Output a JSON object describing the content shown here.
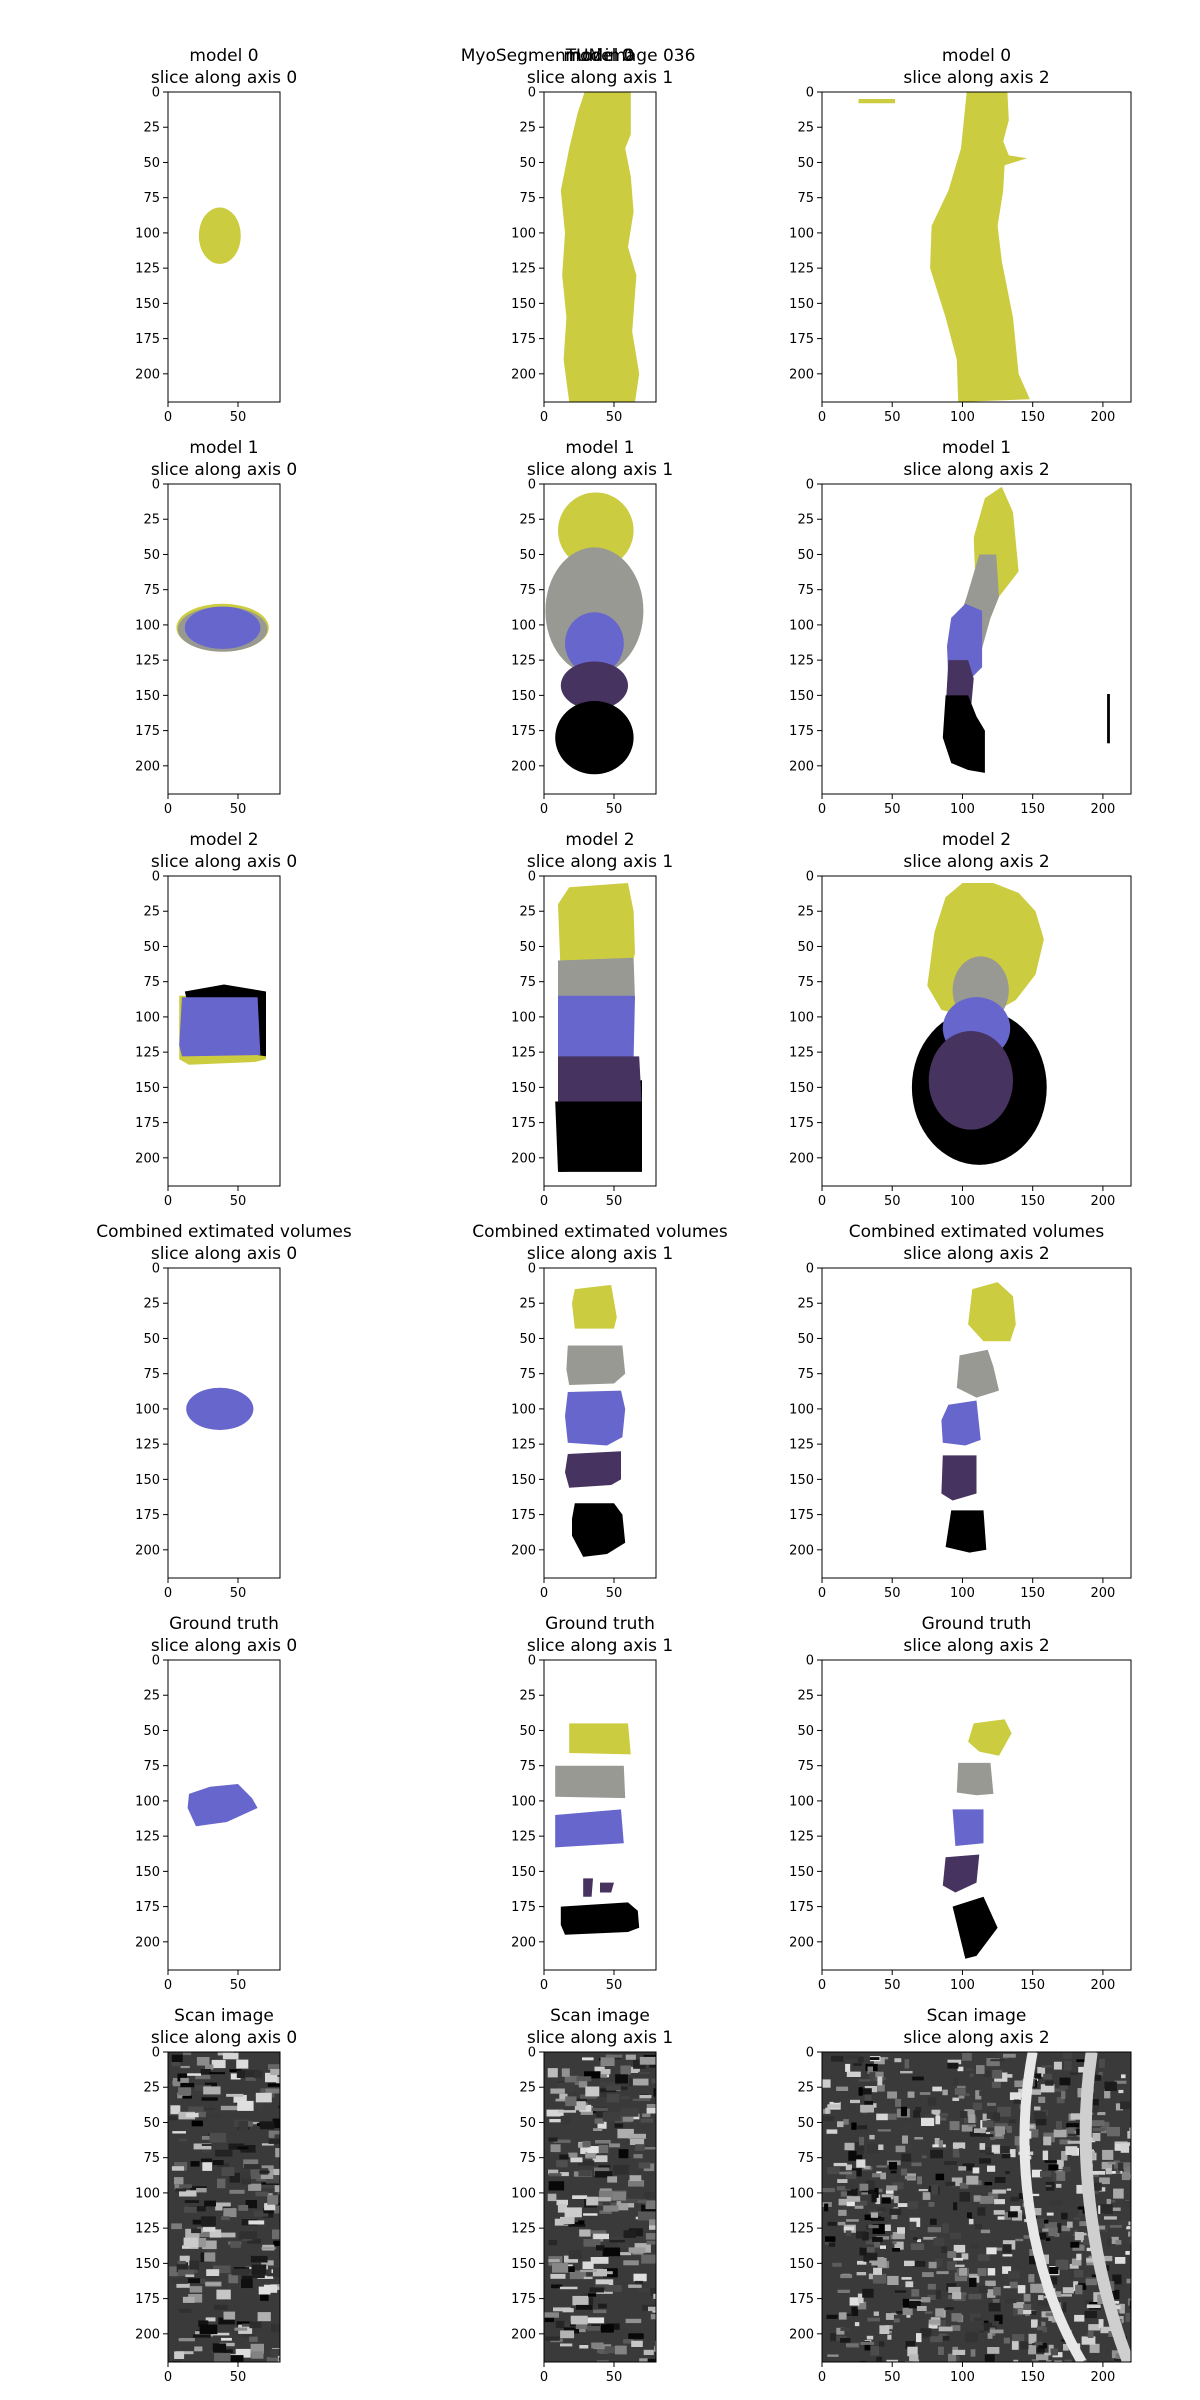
{
  "figure": {
    "suptitle_a": "MyoSegmenTUM",
    "suptitle_b": "image 036",
    "suptitle_c": "model 0"
  },
  "chart_data": {
    "type": "image-grid",
    "rows": [
      "model 0",
      "model 1",
      "model 2",
      "Combined extimated volumes",
      "Ground truth",
      "Scan image"
    ],
    "columns": [
      "slice along axis 0",
      "slice along axis 1",
      "slice along axis 2"
    ],
    "axis_ranges": {
      "axis0": {
        "x": [
          0,
          80
        ],
        "y": [
          0,
          220
        ],
        "xticks": [
          0,
          50
        ],
        "yticks": [
          0,
          25,
          50,
          75,
          100,
          125,
          150,
          175,
          200
        ]
      },
      "axis1": {
        "x": [
          0,
          80
        ],
        "y": [
          0,
          220
        ],
        "xticks": [
          0,
          50
        ],
        "yticks": [
          0,
          25,
          50,
          75,
          100,
          125,
          150,
          175,
          200
        ]
      },
      "axis2": {
        "x": [
          0,
          220
        ],
        "y": [
          0,
          220
        ],
        "xticks": [
          0,
          50,
          100,
          150,
          200
        ],
        "yticks": [
          0,
          25,
          50,
          75,
          100,
          125,
          150,
          175,
          200
        ]
      }
    },
    "class_colors": [
      "#cccc40",
      "#999994",
      "#6666cc",
      "#46335f",
      "#000000"
    ],
    "grid": false,
    "legend": "none"
  },
  "panels": [
    {
      "title": "model 0",
      "subtitle": "slice along axis 0"
    },
    {
      "title": "model 0",
      "subtitle": "slice along axis 1"
    },
    {
      "title": "model 0",
      "subtitle": "slice along axis 2"
    },
    {
      "title": "model 1",
      "subtitle": "slice along axis 0"
    },
    {
      "title": "model 1",
      "subtitle": "slice along axis 1"
    },
    {
      "title": "model 1",
      "subtitle": "slice along axis 2"
    },
    {
      "title": "model 2",
      "subtitle": "slice along axis 0"
    },
    {
      "title": "model 2",
      "subtitle": "slice along axis 1"
    },
    {
      "title": "model 2",
      "subtitle": "slice along axis 2"
    },
    {
      "title": "Combined extimated volumes",
      "subtitle": "slice along axis 0"
    },
    {
      "title": "Combined extimated volumes",
      "subtitle": "slice along axis 1"
    },
    {
      "title": "Combined extimated volumes",
      "subtitle": "slice along axis 2"
    },
    {
      "title": "Ground truth",
      "subtitle": "slice along axis 0"
    },
    {
      "title": "Ground truth",
      "subtitle": "slice along axis 1"
    },
    {
      "title": "Ground truth",
      "subtitle": "slice along axis 2"
    },
    {
      "title": "Scan image",
      "subtitle": "slice along axis 0"
    },
    {
      "title": "Scan image",
      "subtitle": "slice along axis 1"
    },
    {
      "title": "Scan image",
      "subtitle": "slice along axis 2"
    }
  ]
}
